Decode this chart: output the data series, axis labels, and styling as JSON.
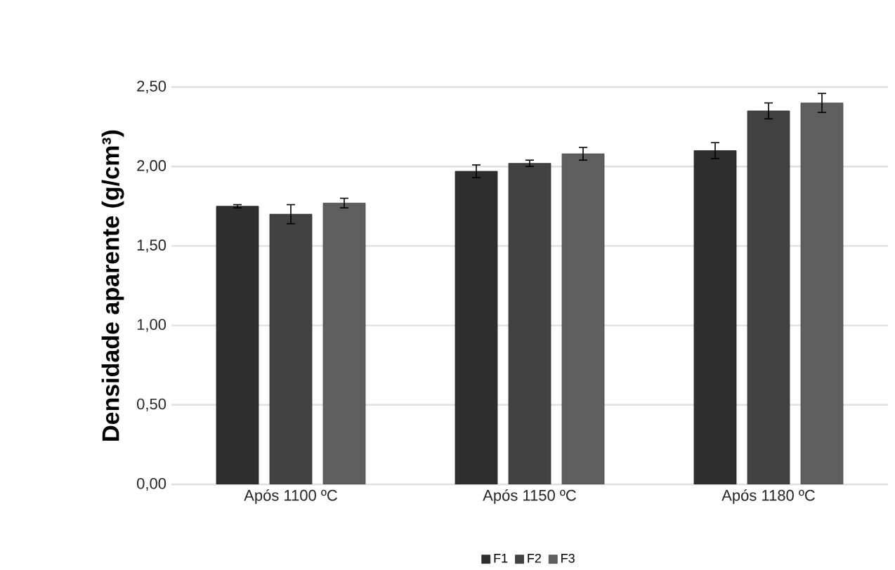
{
  "chart_data": {
    "type": "bar",
    "ylabel": "Densidade aparente (g/cm³)",
    "categories": [
      "Após 1100 ºC",
      "Após 1150 ºC",
      "Após 1180 ºC"
    ],
    "series": [
      {
        "name": "F1",
        "color": "#2e2e2e",
        "values": [
          1.75,
          1.97,
          2.1
        ],
        "errors": [
          0.01,
          0.04,
          0.05
        ]
      },
      {
        "name": "F2",
        "color": "#414141",
        "values": [
          1.7,
          2.02,
          2.35
        ],
        "errors": [
          0.06,
          0.02,
          0.05
        ]
      },
      {
        "name": "F3",
        "color": "#5e5e5e",
        "values": [
          1.77,
          2.08,
          2.4
        ],
        "errors": [
          0.03,
          0.04,
          0.06
        ]
      }
    ],
    "ylim": [
      0,
      2.5
    ],
    "yticks": [
      {
        "value": 0,
        "label": "0,00"
      },
      {
        "value": 0.5,
        "label": "0,50"
      },
      {
        "value": 1,
        "label": "1,00"
      },
      {
        "value": 1.5,
        "label": "1,50"
      },
      {
        "value": 2,
        "label": "2,00"
      },
      {
        "value": 2.5,
        "label": "2,50"
      }
    ],
    "grid": "y",
    "legend": "bottom"
  }
}
